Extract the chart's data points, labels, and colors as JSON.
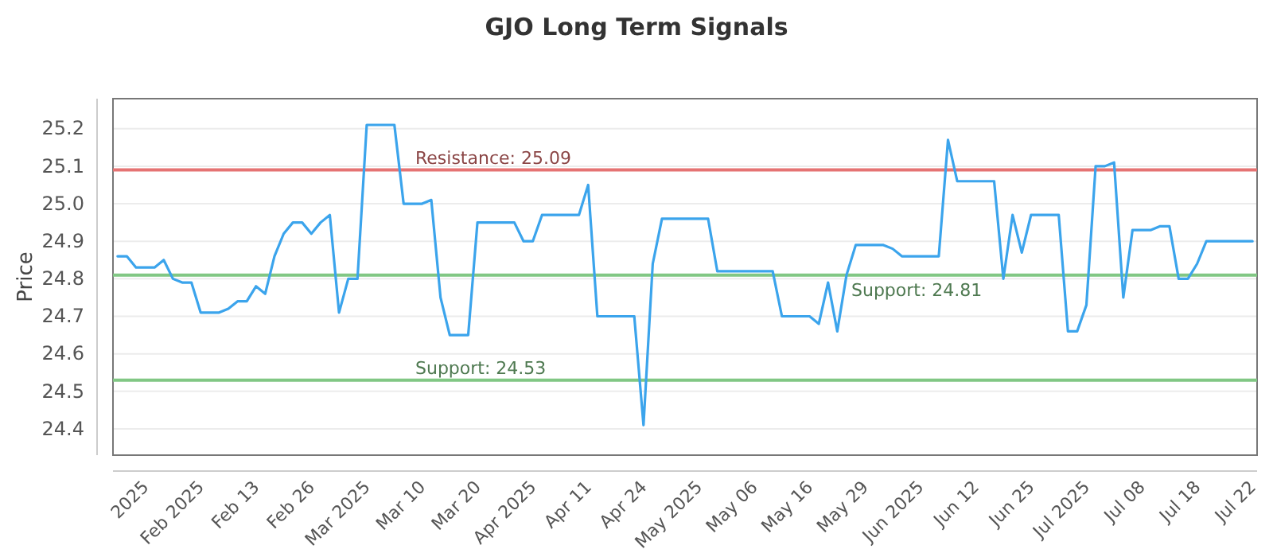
{
  "chart_data": {
    "type": "line",
    "title": "GJO Long Term Signals",
    "ylabel": "Price",
    "categories": [
      null,
      null,
      null,
      "2025",
      null,
      null,
      null,
      null,
      null,
      "Feb 2025",
      null,
      null,
      null,
      null,
      null,
      "Feb 13",
      null,
      null,
      null,
      null,
      null,
      "Feb 26",
      null,
      null,
      null,
      null,
      null,
      "Mar 2025",
      null,
      null,
      null,
      null,
      null,
      "Mar 10",
      null,
      null,
      null,
      null,
      null,
      "Mar 20",
      null,
      null,
      null,
      null,
      null,
      "Apr 2025",
      null,
      null,
      null,
      null,
      null,
      "Apr 11",
      null,
      null,
      null,
      null,
      null,
      "Apr 24",
      null,
      null,
      null,
      null,
      null,
      "May 2025",
      null,
      null,
      null,
      null,
      null,
      "May 06",
      null,
      null,
      null,
      null,
      null,
      "May 16",
      null,
      null,
      null,
      null,
      null,
      "May 29",
      null,
      null,
      null,
      null,
      null,
      "Jun 2025",
      null,
      null,
      null,
      null,
      null,
      "Jun 12",
      null,
      null,
      null,
      null,
      null,
      "Jun 25",
      null,
      null,
      null,
      null,
      null,
      "Jul 2025",
      null,
      null,
      null,
      null,
      null,
      "Jul 08",
      null,
      null,
      null,
      null,
      null,
      "Jul 18",
      null,
      null,
      null,
      null,
      null,
      "Jul 22"
    ],
    "ylim": [
      24.33,
      25.28
    ],
    "yticks": [
      24.4,
      24.5,
      24.6,
      24.7,
      24.8,
      24.9,
      {
        "value": 25.0,
        "label": "25.0"
      },
      25.1,
      25.2
    ],
    "grid": "y",
    "marker": "none",
    "line_style": "solid",
    "series": [
      {
        "color": "#3ba4ec",
        "values": [
          24.86,
          24.86,
          24.83,
          24.83,
          24.83,
          24.85,
          24.8,
          24.79,
          24.79,
          24.71,
          24.71,
          24.71,
          24.72,
          24.74,
          24.74,
          24.78,
          24.76,
          24.86,
          24.92,
          24.95,
          24.95,
          24.92,
          24.95,
          24.97,
          24.71,
          24.8,
          24.8,
          25.21,
          25.21,
          25.21,
          25.21,
          25.0,
          25.0,
          25.0,
          25.01,
          24.75,
          24.65,
          24.65,
          24.65,
          24.95,
          24.95,
          24.95,
          24.95,
          24.95,
          24.9,
          24.9,
          24.97,
          24.97,
          24.97,
          24.97,
          24.97,
          25.05,
          24.7,
          24.7,
          24.7,
          24.7,
          24.7,
          24.41,
          24.84,
          24.96,
          24.96,
          24.96,
          24.96,
          24.96,
          24.96,
          24.82,
          24.82,
          24.82,
          24.82,
          24.82,
          24.82,
          24.82,
          24.7,
          24.7,
          24.7,
          24.7,
          24.68,
          24.79,
          24.66,
          24.81,
          24.89,
          24.89,
          24.89,
          24.89,
          24.88,
          24.86,
          24.86,
          24.86,
          24.86,
          24.86,
          25.17,
          25.06,
          25.06,
          25.06,
          25.06,
          25.06,
          24.8,
          24.97,
          24.87,
          24.97,
          24.97,
          24.97,
          24.97,
          24.66,
          24.66,
          24.73,
          25.1,
          25.1,
          25.11,
          24.75,
          24.93,
          24.93,
          24.93,
          24.94,
          24.94,
          24.8,
          24.8,
          24.84,
          24.9,
          24.9,
          24.9,
          24.9,
          24.9,
          24.9
        ]
      }
    ],
    "ref_lines": [
      {
        "axis": "y",
        "value": 25.09,
        "label": "Resistance: 25.09",
        "color": "#e57373"
      },
      {
        "axis": "y",
        "value": 24.81,
        "label": "Support: 24.81",
        "color": "#81c784"
      },
      {
        "axis": "y",
        "value": 24.53,
        "label": "Support: 24.53",
        "color": "#81c784"
      }
    ]
  }
}
